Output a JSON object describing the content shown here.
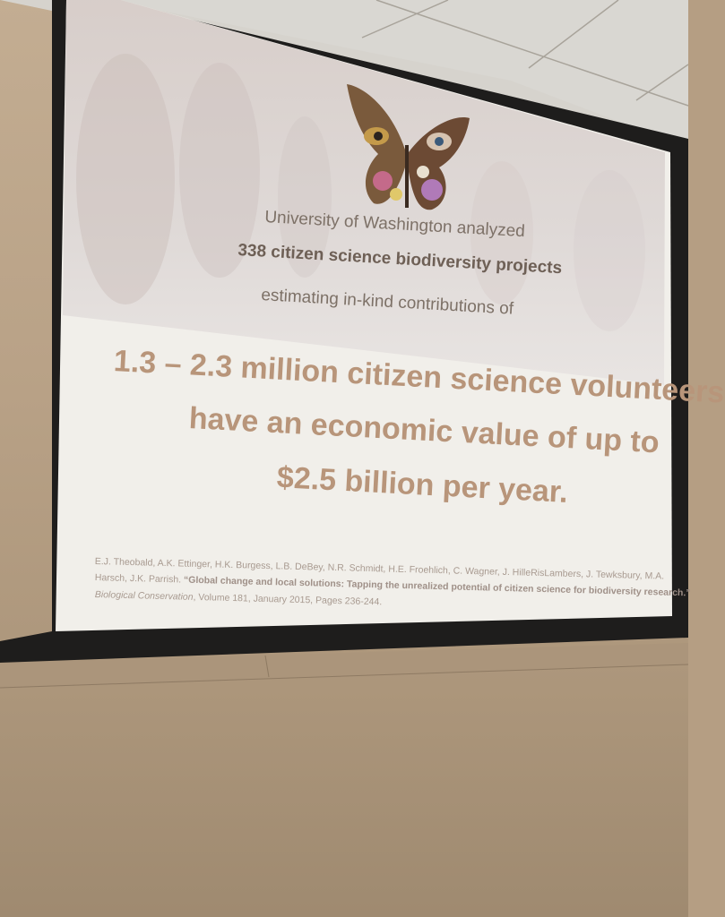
{
  "slide": {
    "line1": "University of Washington analyzed",
    "line2": "338 citizen science biodiversity projects",
    "line3": "estimating in-kind contributions of",
    "headline": [
      "1.3 – 2.3 million citizen science volunteers",
      "have an economic value of up to",
      "$2.5 billion per year."
    ],
    "citation": {
      "authors_a": "E.J. Theobald, A.K. Ettinger, H.K. Burgess, L.B. DeBey, N.R. Schmidt, H.E. Froehlich, C. Wagner, J. HilleRisLambers, J. Tewksbury, M.A.",
      "authors_b": "Harsch, J.K. Parrish. ",
      "title": "“Global change and local solutions: Tapping the unrealized potential of citizen science for biodiversity research.”",
      "journal": "Biological Conservation",
      "details": ", Volume 181, January 2015, Pages 236-244."
    }
  },
  "colors": {
    "headline": "#b8957a",
    "wall": "#b9a287",
    "screen_frame": "#1c1b1b"
  }
}
